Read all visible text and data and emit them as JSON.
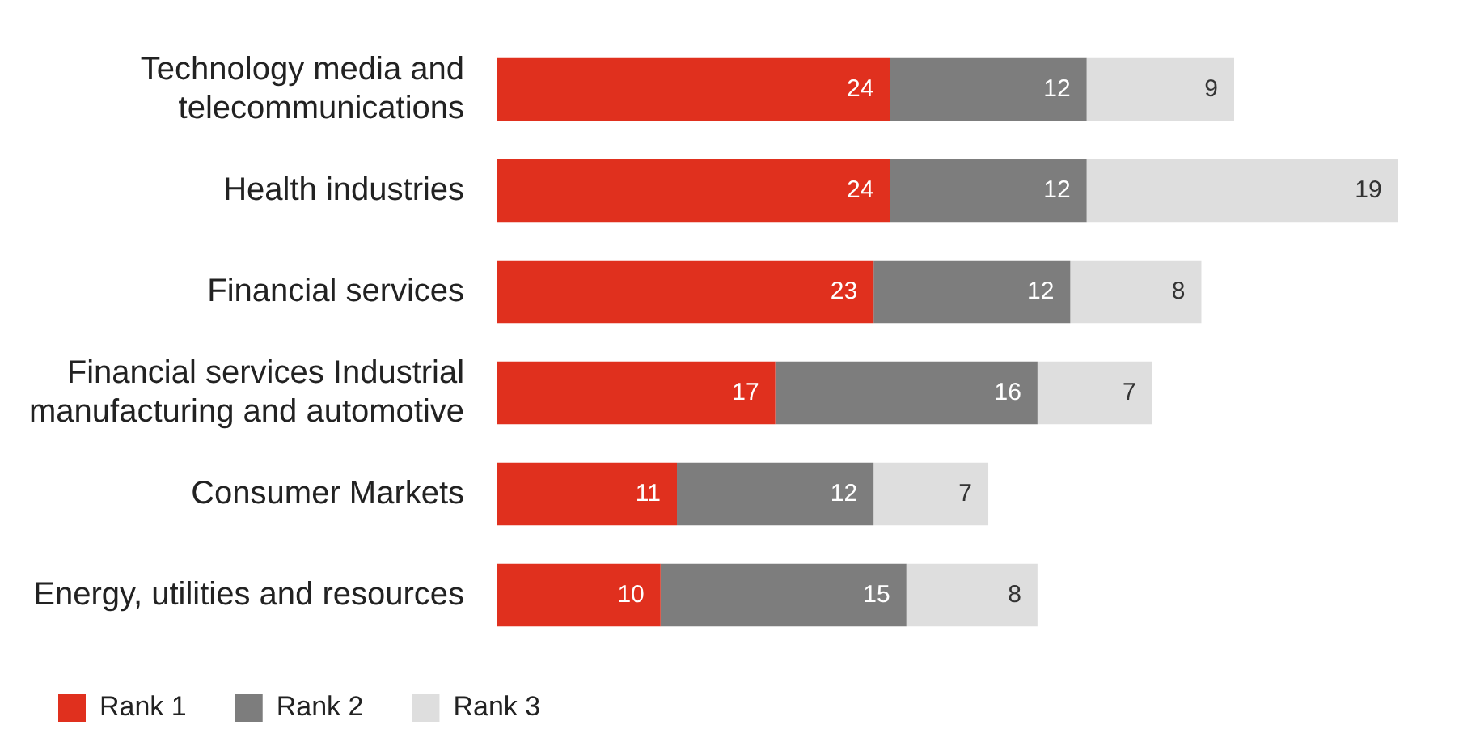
{
  "chart_data": {
    "type": "bar",
    "orientation": "horizontal",
    "stacked": true,
    "data_labels": true,
    "legend": "bottom left",
    "categories": [
      "Technology media and telecommunications",
      "Health industries",
      "Financial services",
      "Financial services Industrial manufacturing and automotive",
      "Consumer Markets",
      "Energy, utilities and resources"
    ],
    "series": [
      {
        "name": "Rank 1",
        "color": "#e0301e",
        "values": [
          24,
          24,
          23,
          17,
          11,
          10
        ]
      },
      {
        "name": "Rank 2",
        "color": "#7d7d7d",
        "values": [
          12,
          12,
          12,
          16,
          12,
          15
        ]
      },
      {
        "name": "Rank 3",
        "color": "#dedede",
        "values": [
          9,
          19,
          8,
          7,
          7,
          8
        ]
      }
    ]
  }
}
